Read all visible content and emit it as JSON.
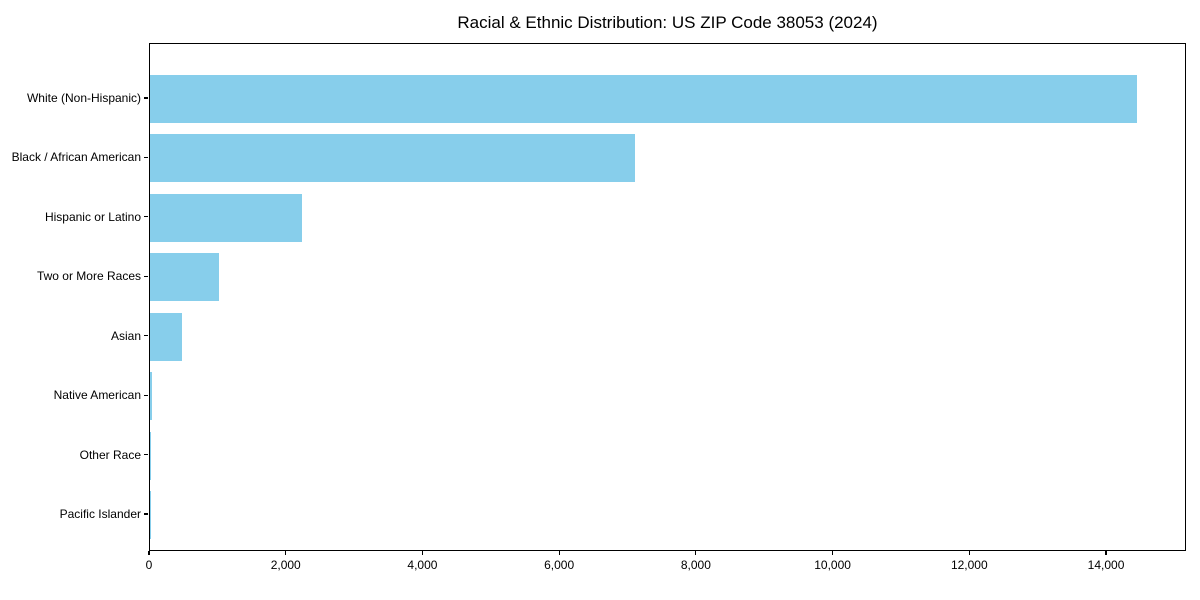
{
  "figure": {
    "background": "#ffffff"
  },
  "chart_data": {
    "type": "bar",
    "orientation": "horizontal",
    "title": "Racial & Ethnic Distribution: US ZIP Code 38053 (2024)",
    "categories": [
      "White (Non-Hispanic)",
      "Black / African American",
      "Hispanic or Latino",
      "Two or More Races",
      "Asian",
      "Native American",
      "Other Race",
      "Pacific Islander"
    ],
    "values": [
      14440,
      7100,
      2220,
      1010,
      470,
      25,
      10,
      5
    ],
    "xlabel": "",
    "ylabel": "",
    "xlim": [
      0,
      15170
    ],
    "x_ticks": [
      0,
      2000,
      4000,
      6000,
      8000,
      10000,
      12000,
      14000
    ],
    "x_tick_labels": [
      "0",
      "2,000",
      "4,000",
      "6,000",
      "8,000",
      "10,000",
      "12,000",
      "14,000"
    ],
    "bar_color": "#87CEEB",
    "axis_color": "#000000",
    "text_color": "#000000",
    "grid": false,
    "legend": "none"
  }
}
